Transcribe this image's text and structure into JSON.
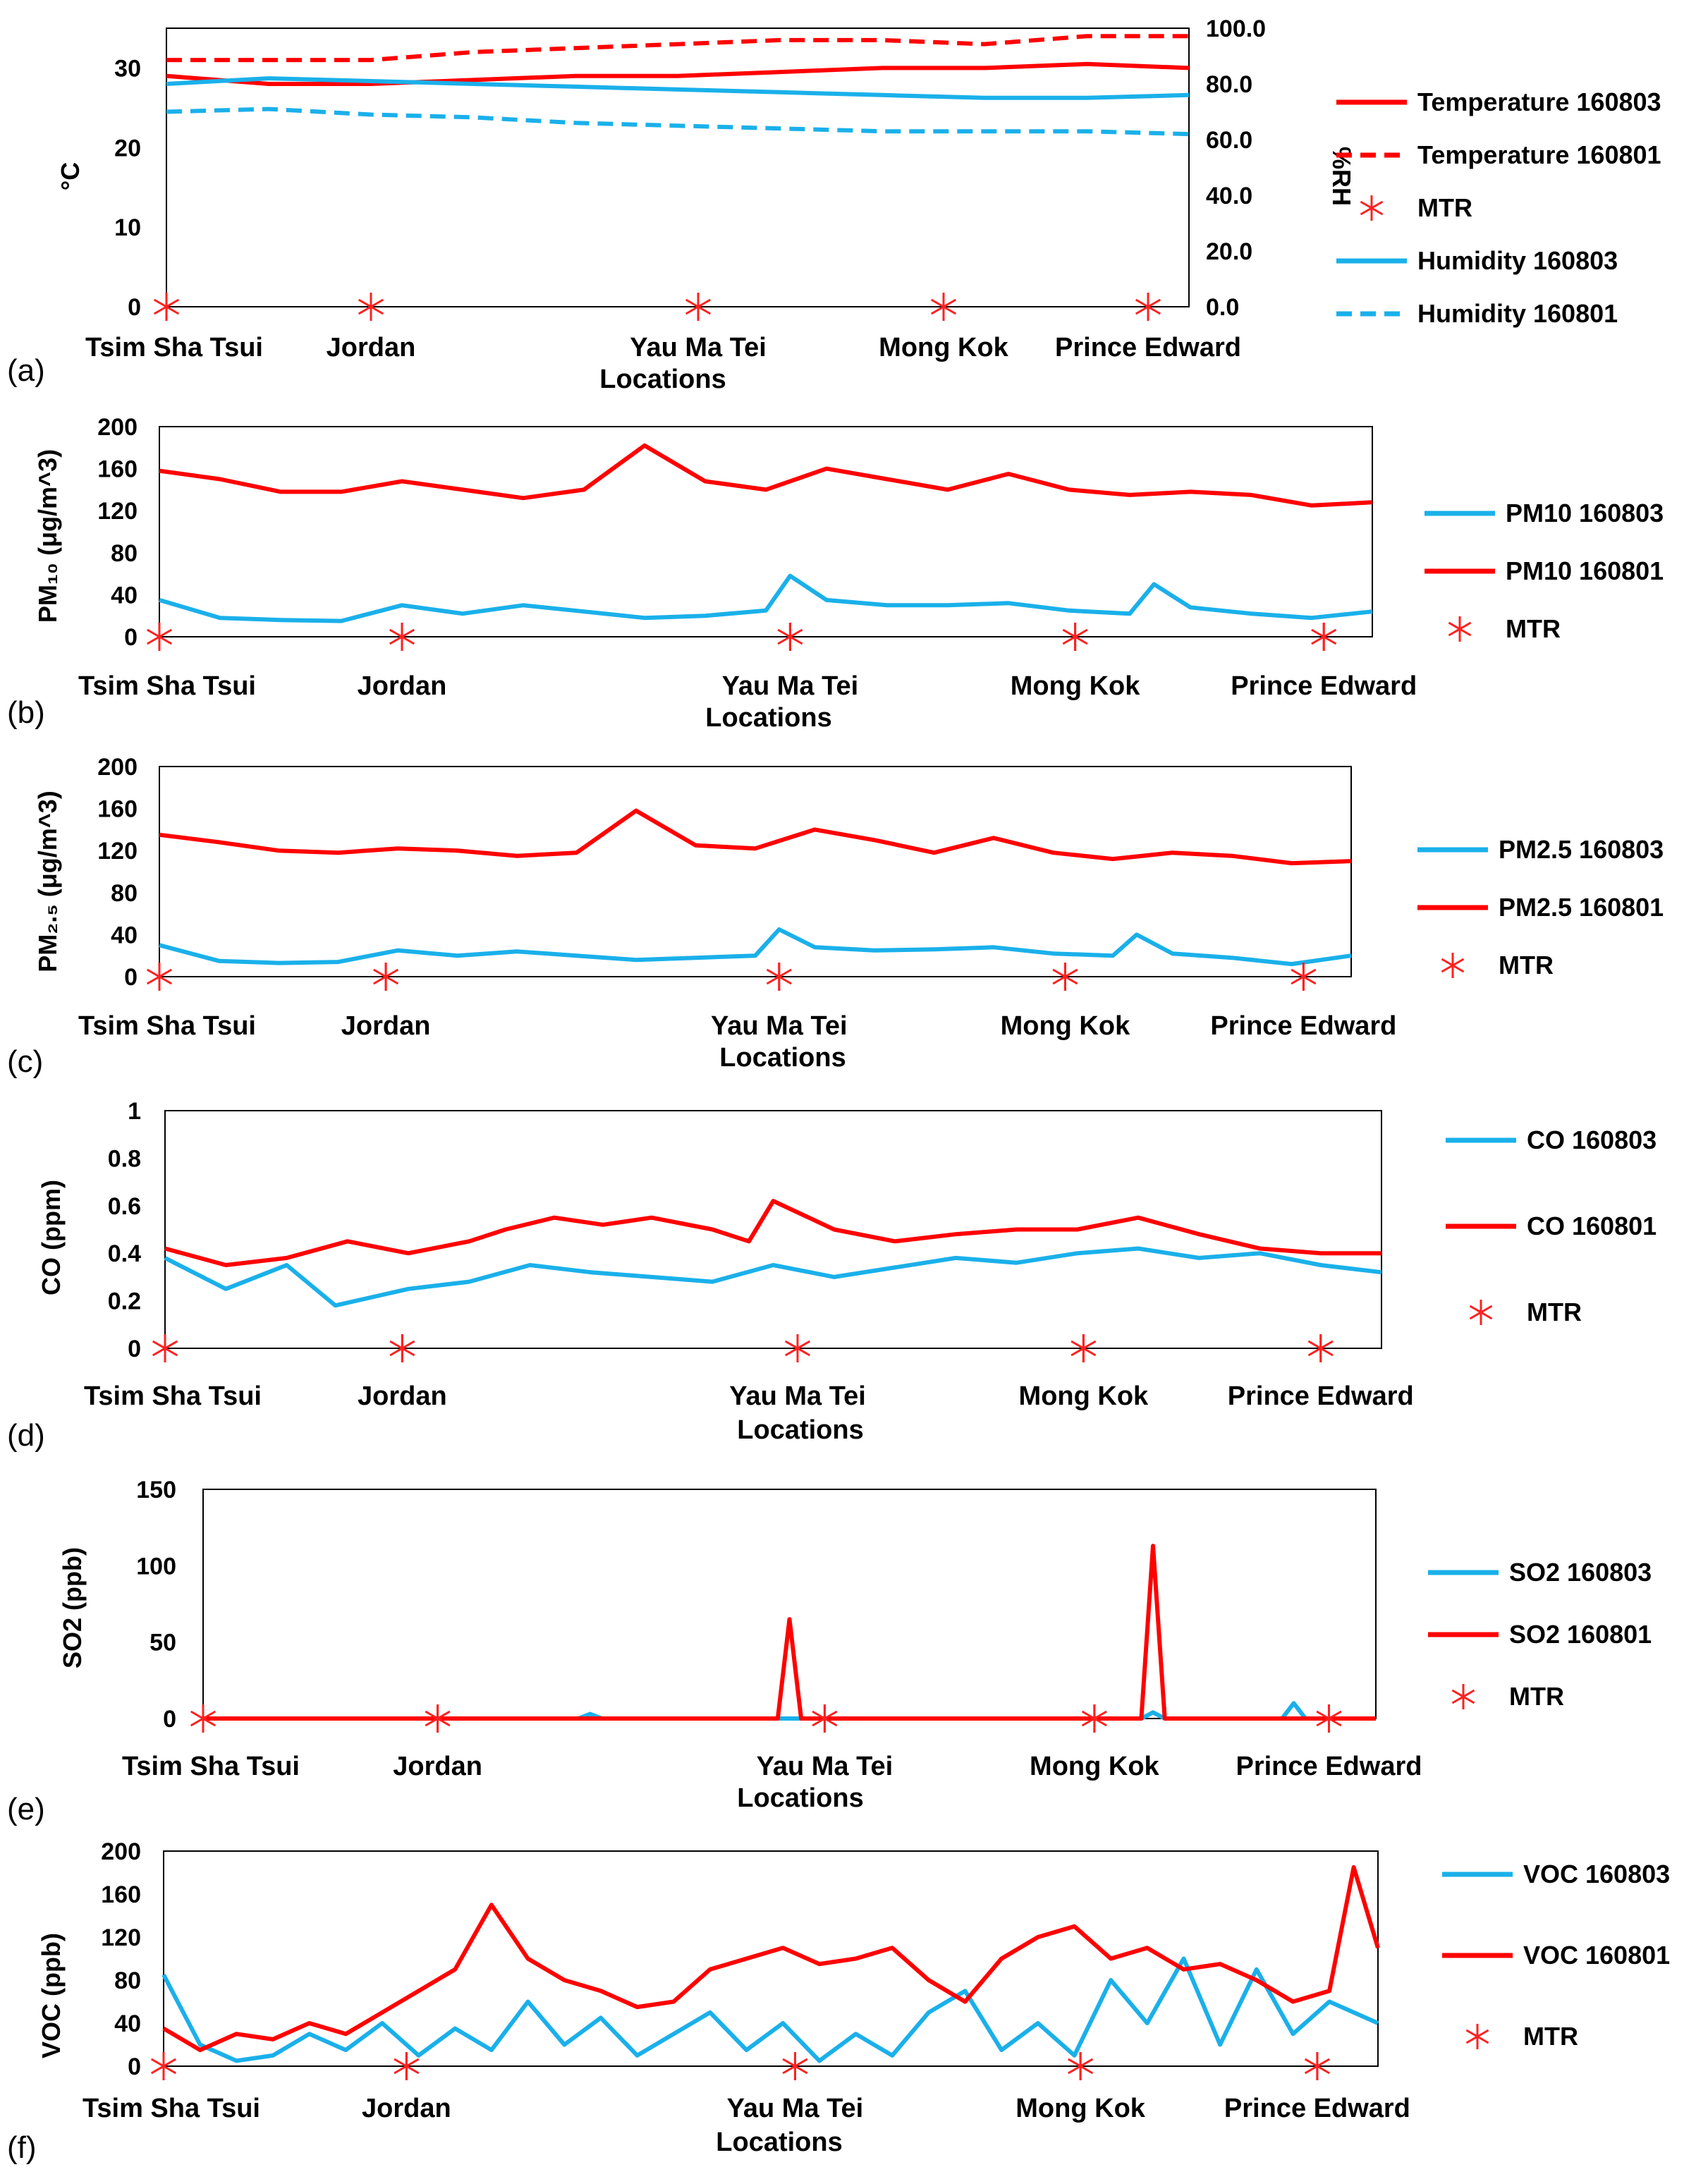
{
  "figure": {
    "panels": [
      {
        "id": "a",
        "label": "(a)"
      },
      {
        "id": "b",
        "label": "(b)"
      },
      {
        "id": "c",
        "label": "(c)"
      },
      {
        "id": "d",
        "label": "(d)"
      },
      {
        "id": "e",
        "label": "(e)"
      },
      {
        "id": "f",
        "label": "(f)"
      }
    ]
  },
  "chart_data": [
    {
      "id": "a",
      "type": "line",
      "xlabel": "Locations",
      "ylabel": "°C",
      "y2label": "%RH",
      "ylim": [
        0,
        35
      ],
      "y2lim": [
        0,
        100
      ],
      "yticks": [
        "0",
        "10",
        "20",
        "30"
      ],
      "y2ticks": [
        "0.0",
        "20.0",
        "40.0",
        "60.0",
        "80.0",
        "100.0"
      ],
      "locations": [
        "Tsim Sha Tsui",
        "Jordan",
        "Yau Ma Tei",
        "Mong Kok",
        "Prince Edward"
      ],
      "mtr_x": [
        0.0,
        0.2,
        0.52,
        0.76,
        0.96
      ],
      "legend": [
        "Temperature 160803",
        "Temperature 160801",
        "MTR",
        "Humidity 160803",
        "Humidity 160801"
      ],
      "series": [
        {
          "name": "Temperature 160803",
          "axis": "left",
          "color": "#ff0000",
          "dash": "solid",
          "x": [
            0,
            0.1,
            0.2,
            0.3,
            0.4,
            0.5,
            0.6,
            0.7,
            0.8,
            0.9,
            1.0
          ],
          "values": [
            29,
            28,
            28,
            28.5,
            29,
            29,
            29.5,
            30,
            30,
            30.5,
            30
          ]
        },
        {
          "name": "Temperature 160801",
          "axis": "left",
          "color": "#ff0000",
          "dash": "dashed",
          "x": [
            0,
            0.1,
            0.2,
            0.3,
            0.4,
            0.5,
            0.6,
            0.7,
            0.8,
            0.9,
            1.0
          ],
          "values": [
            31,
            31,
            31,
            32,
            32.5,
            33,
            33.5,
            33.5,
            33,
            34,
            34
          ]
        },
        {
          "name": "Humidity 160803",
          "axis": "right",
          "color": "#1ab0ea",
          "dash": "solid",
          "x": [
            0,
            0.1,
            0.2,
            0.3,
            0.4,
            0.5,
            0.6,
            0.7,
            0.8,
            0.9,
            1.0
          ],
          "values": [
            80,
            82,
            81,
            80,
            79,
            78,
            77,
            76,
            75,
            75,
            76
          ]
        },
        {
          "name": "Humidity 160801",
          "axis": "right",
          "color": "#1ab0ea",
          "dash": "dashed",
          "x": [
            0,
            0.1,
            0.2,
            0.3,
            0.4,
            0.5,
            0.6,
            0.7,
            0.8,
            0.9,
            1.0
          ],
          "values": [
            70,
            71,
            69,
            68,
            66,
            65,
            64,
            63,
            63,
            63,
            62
          ]
        }
      ]
    },
    {
      "id": "b",
      "type": "line",
      "xlabel": "Locations",
      "ylabel": "PM₁₀ (μg/m^3)",
      "ylim": [
        0,
        200
      ],
      "yticks": [
        "0",
        "40",
        "80",
        "120",
        "160",
        "200"
      ],
      "locations": [
        "Tsim Sha Tsui",
        "Jordan",
        "Yau Ma Tei",
        "Mong Kok",
        "Prince Edward"
      ],
      "mtr_x": [
        0.0,
        0.2,
        0.52,
        0.755,
        0.96
      ],
      "legend": [
        "PM10 160803",
        "PM10 160801",
        "MTR"
      ],
      "series": [
        {
          "name": "PM10 160803",
          "color": "#1ab0ea",
          "x": [
            0,
            0.05,
            0.1,
            0.15,
            0.2,
            0.25,
            0.3,
            0.35,
            0.4,
            0.45,
            0.5,
            0.52,
            0.55,
            0.6,
            0.65,
            0.7,
            0.75,
            0.8,
            0.82,
            0.85,
            0.9,
            0.95,
            1.0
          ],
          "values": [
            35,
            18,
            16,
            15,
            30,
            22,
            30,
            24,
            18,
            20,
            25,
            58,
            35,
            30,
            30,
            32,
            25,
            22,
            50,
            28,
            22,
            18,
            24
          ]
        },
        {
          "name": "PM10 160801",
          "color": "#ff0000",
          "x": [
            0,
            0.05,
            0.1,
            0.15,
            0.2,
            0.25,
            0.3,
            0.35,
            0.4,
            0.45,
            0.5,
            0.55,
            0.6,
            0.65,
            0.7,
            0.75,
            0.8,
            0.85,
            0.9,
            0.95,
            1.0
          ],
          "values": [
            158,
            150,
            138,
            138,
            148,
            140,
            132,
            140,
            182,
            148,
            140,
            160,
            150,
            140,
            155,
            140,
            135,
            138,
            135,
            125,
            128
          ]
        }
      ]
    },
    {
      "id": "c",
      "type": "line",
      "xlabel": "Locations",
      "ylabel": "PM₂.₅ (μg/m^3)",
      "ylim": [
        0,
        200
      ],
      "yticks": [
        "0",
        "40",
        "80",
        "120",
        "160",
        "200"
      ],
      "locations": [
        "Tsim Sha Tsui",
        "Jordan",
        "Yau Ma Tei",
        "Mong Kok",
        "Prince Edward"
      ],
      "mtr_x": [
        0.0,
        0.19,
        0.52,
        0.76,
        0.96
      ],
      "legend": [
        "PM2.5 160803",
        "PM2.5 160801",
        "MTR"
      ],
      "series": [
        {
          "name": "PM2.5 160803",
          "color": "#1ab0ea",
          "x": [
            0,
            0.05,
            0.1,
            0.15,
            0.2,
            0.25,
            0.3,
            0.35,
            0.4,
            0.45,
            0.5,
            0.52,
            0.55,
            0.6,
            0.65,
            0.7,
            0.75,
            0.8,
            0.82,
            0.85,
            0.9,
            0.95,
            1.0
          ],
          "values": [
            30,
            15,
            13,
            14,
            25,
            20,
            24,
            20,
            16,
            18,
            20,
            45,
            28,
            25,
            26,
            28,
            22,
            20,
            40,
            22,
            18,
            12,
            20
          ]
        },
        {
          "name": "PM2.5 160801",
          "color": "#ff0000",
          "x": [
            0,
            0.05,
            0.1,
            0.15,
            0.2,
            0.25,
            0.3,
            0.35,
            0.4,
            0.45,
            0.5,
            0.55,
            0.6,
            0.65,
            0.7,
            0.75,
            0.8,
            0.85,
            0.9,
            0.95,
            1.0
          ],
          "values": [
            135,
            128,
            120,
            118,
            122,
            120,
            115,
            118,
            158,
            125,
            122,
            140,
            130,
            118,
            132,
            118,
            112,
            118,
            115,
            108,
            110
          ]
        }
      ]
    },
    {
      "id": "d",
      "type": "line",
      "xlabel": "Locations",
      "ylabel": "CO (ppm)",
      "ylim": [
        0,
        1
      ],
      "yticks": [
        "0",
        "0.2",
        "0.4",
        "0.6",
        "0.8",
        "1"
      ],
      "locations": [
        "Tsim Sha Tsui",
        "Jordan",
        "Yau Ma Tei",
        "Mong Kok",
        "Prince Edward"
      ],
      "mtr_x": [
        0.0,
        0.195,
        0.52,
        0.755,
        0.95
      ],
      "legend": [
        "CO 160803",
        "CO 160801",
        "MTR"
      ],
      "series": [
        {
          "name": "CO 160803",
          "color": "#1ab0ea",
          "x": [
            0,
            0.05,
            0.1,
            0.14,
            0.2,
            0.25,
            0.3,
            0.35,
            0.4,
            0.45,
            0.5,
            0.55,
            0.6,
            0.65,
            0.7,
            0.75,
            0.8,
            0.85,
            0.9,
            0.95,
            1.0
          ],
          "values": [
            0.38,
            0.25,
            0.35,
            0.18,
            0.25,
            0.28,
            0.35,
            0.32,
            0.3,
            0.28,
            0.35,
            0.3,
            0.34,
            0.38,
            0.36,
            0.4,
            0.42,
            0.38,
            0.4,
            0.35,
            0.32
          ]
        },
        {
          "name": "CO 160801",
          "color": "#ff0000",
          "x": [
            0,
            0.05,
            0.1,
            0.15,
            0.2,
            0.25,
            0.28,
            0.32,
            0.36,
            0.4,
            0.45,
            0.48,
            0.5,
            0.55,
            0.6,
            0.65,
            0.7,
            0.75,
            0.8,
            0.85,
            0.9,
            0.95,
            1.0
          ],
          "values": [
            0.42,
            0.35,
            0.38,
            0.45,
            0.4,
            0.45,
            0.5,
            0.55,
            0.52,
            0.55,
            0.5,
            0.45,
            0.62,
            0.5,
            0.45,
            0.48,
            0.5,
            0.5,
            0.55,
            0.48,
            0.42,
            0.4,
            0.4
          ]
        }
      ]
    },
    {
      "id": "e",
      "type": "line",
      "xlabel": "Locations",
      "ylabel": "SO2 (ppb)",
      "ylim": [
        0,
        150
      ],
      "yticks": [
        "0",
        "50",
        "100",
        "150"
      ],
      "locations": [
        "Tsim Sha Tsui",
        "Jordan",
        "Yau Ma Tei",
        "Mong Kok",
        "Prince Edward"
      ],
      "mtr_x": [
        0.0,
        0.2,
        0.53,
        0.76,
        0.96
      ],
      "legend": [
        "SO2 160803",
        "SO2 160801",
        "MTR"
      ],
      "series": [
        {
          "name": "SO2 160803",
          "color": "#1ab0ea",
          "x": [
            0,
            0.32,
            0.33,
            0.34,
            0.8,
            0.81,
            0.82,
            0.92,
            0.93,
            0.94,
            1.0
          ],
          "values": [
            0,
            0,
            3,
            0,
            0,
            4,
            0,
            0,
            10,
            0,
            0
          ]
        },
        {
          "name": "SO2 160801",
          "color": "#ff0000",
          "x": [
            0,
            0.49,
            0.5,
            0.51,
            0.8,
            0.81,
            0.82,
            1.0
          ],
          "values": [
            0,
            0,
            65,
            0,
            0,
            113,
            0,
            0
          ]
        }
      ]
    },
    {
      "id": "f",
      "type": "line",
      "xlabel": "Locations",
      "ylabel": "VOC (ppb)",
      "ylim": [
        0,
        200
      ],
      "yticks": [
        "0",
        "40",
        "80",
        "120",
        "160",
        "200"
      ],
      "locations": [
        "Tsim Sha Tsui",
        "Jordan",
        "Yau Ma Tei",
        "Mong Kok",
        "Prince Edward"
      ],
      "mtr_x": [
        0.0,
        0.2,
        0.52,
        0.755,
        0.95
      ],
      "legend": [
        "VOC 160803",
        "VOC 160801",
        "MTR"
      ],
      "series": [
        {
          "name": "VOC 160803",
          "color": "#1ab0ea",
          "x": [
            0,
            0.03,
            0.06,
            0.09,
            0.12,
            0.15,
            0.18,
            0.21,
            0.24,
            0.27,
            0.3,
            0.33,
            0.36,
            0.39,
            0.42,
            0.45,
            0.48,
            0.51,
            0.54,
            0.57,
            0.6,
            0.63,
            0.66,
            0.69,
            0.72,
            0.75,
            0.78,
            0.81,
            0.84,
            0.87,
            0.9,
            0.93,
            0.96,
            1.0
          ],
          "values": [
            85,
            20,
            5,
            10,
            30,
            15,
            40,
            10,
            35,
            15,
            60,
            20,
            45,
            10,
            30,
            50,
            15,
            40,
            5,
            30,
            10,
            50,
            70,
            15,
            40,
            10,
            80,
            40,
            100,
            20,
            90,
            30,
            60,
            40
          ]
        },
        {
          "name": "VOC 160801",
          "color": "#ff0000",
          "x": [
            0,
            0.03,
            0.06,
            0.09,
            0.12,
            0.15,
            0.18,
            0.21,
            0.24,
            0.27,
            0.3,
            0.33,
            0.36,
            0.39,
            0.42,
            0.45,
            0.48,
            0.51,
            0.54,
            0.57,
            0.6,
            0.63,
            0.66,
            0.69,
            0.72,
            0.75,
            0.78,
            0.81,
            0.84,
            0.87,
            0.9,
            0.93,
            0.96,
            0.98,
            1.0
          ],
          "values": [
            35,
            15,
            30,
            25,
            40,
            30,
            50,
            70,
            90,
            150,
            100,
            80,
            70,
            55,
            60,
            90,
            100,
            110,
            95,
            100,
            110,
            80,
            60,
            100,
            120,
            130,
            100,
            110,
            90,
            95,
            80,
            60,
            70,
            185,
            110
          ]
        }
      ]
    }
  ]
}
